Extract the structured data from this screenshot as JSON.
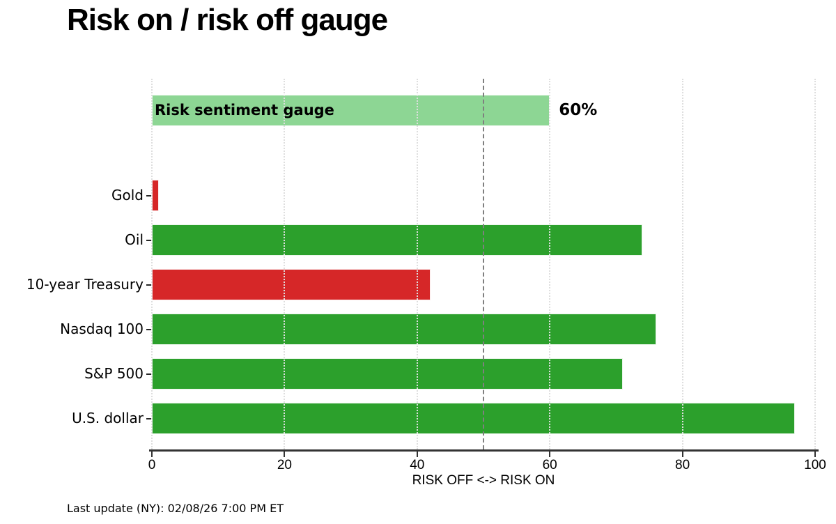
{
  "title": "Risk on / risk off gauge",
  "footer": "Last update (NY): 02/08/26 7:00 PM ET",
  "colors": {
    "green": "#2ca02c",
    "red": "#d62728",
    "gauge_green": "#8dd694",
    "refline_gray": "#7f7f7f",
    "grid_gray": "#dedede",
    "axis_dark": "#333333"
  },
  "chart_data": {
    "type": "bar",
    "orientation": "horizontal",
    "title": "Risk on / risk off gauge",
    "xlabel": "RISK OFF <-> RISK ON",
    "xlim": [
      0,
      100
    ],
    "xticks": [
      0,
      20,
      40,
      60,
      80,
      100
    ],
    "grid": "vertical-dotted",
    "legend_position": "none",
    "reference_line": {
      "value": 50,
      "style": "dashed"
    },
    "gauge_row": {
      "label": "Risk sentiment gauge",
      "value": 60,
      "value_label": "60%",
      "color_key": "gauge_green"
    },
    "categories": [
      "Gold",
      "Oil",
      "10-year Treasury",
      "Nasdaq 100",
      "S&P 500",
      "U.S. dollar"
    ],
    "values": [
      1,
      74,
      42,
      76,
      71,
      97
    ],
    "bar_color_keys": [
      "red",
      "green",
      "red",
      "green",
      "green",
      "green"
    ]
  }
}
